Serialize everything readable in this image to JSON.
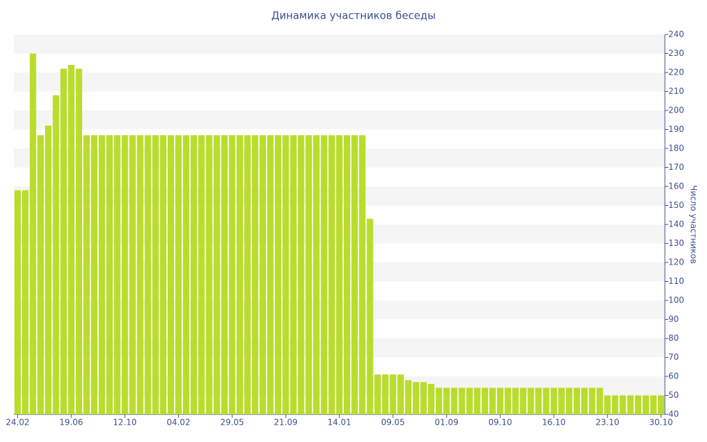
{
  "chart_data": {
    "type": "bar",
    "title": "Динамика участников беседы",
    "y_axis_label": "Число участников",
    "categories": [
      "24.02",
      null,
      null,
      null,
      null,
      null,
      null,
      "19.06",
      null,
      null,
      null,
      null,
      null,
      null,
      "12.10",
      null,
      null,
      null,
      null,
      null,
      null,
      "04.02",
      null,
      null,
      null,
      null,
      null,
      null,
      "29.05",
      null,
      null,
      null,
      null,
      null,
      null,
      "21.09",
      null,
      null,
      null,
      null,
      null,
      null,
      "14.01",
      null,
      null,
      null,
      null,
      null,
      null,
      "09.05",
      null,
      null,
      null,
      null,
      null,
      null,
      "01.09",
      null,
      null,
      null,
      null,
      null,
      null,
      "09.10",
      null,
      null,
      null,
      null,
      null,
      null,
      "16.10",
      null,
      null,
      null,
      null,
      null,
      null,
      "23.10",
      null,
      null,
      null,
      null,
      null,
      null,
      "30.10"
    ],
    "values": [
      158,
      158,
      230,
      187,
      192,
      208,
      222,
      224,
      222,
      187,
      187,
      187,
      187,
      187,
      187,
      187,
      187,
      187,
      187,
      187,
      187,
      187,
      187,
      187,
      187,
      187,
      187,
      187,
      187,
      187,
      187,
      187,
      187,
      187,
      187,
      187,
      187,
      187,
      187,
      187,
      187,
      187,
      187,
      187,
      187,
      187,
      143,
      61,
      61,
      61,
      61,
      58,
      57,
      57,
      56,
      54,
      54,
      54,
      54,
      54,
      54,
      54,
      54,
      54,
      54,
      54,
      54,
      54,
      54,
      54,
      54,
      54,
      54,
      54,
      54,
      54,
      54,
      50,
      50,
      50,
      50,
      50,
      50,
      50,
      50
    ],
    "color": "#badc2c",
    "ylim": [
      40,
      240
    ],
    "yticks": [
      40,
      50,
      60,
      70,
      80,
      90,
      100,
      110,
      120,
      130,
      140,
      150,
      160,
      170,
      180,
      190,
      200,
      210,
      220,
      230,
      240
    ],
    "grid": true
  }
}
